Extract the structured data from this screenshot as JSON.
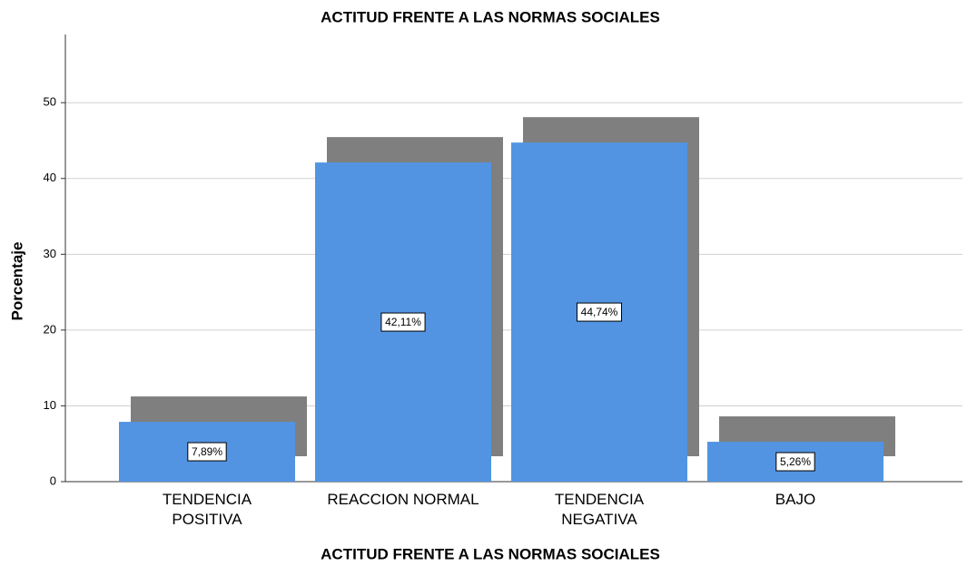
{
  "chart_data": {
    "type": "bar",
    "title": "ACTITUD FRENTE A LAS NORMAS SOCIALES",
    "x_label": "ACTITUD FRENTE A LAS NORMAS SOCIALES",
    "y_label": "Porcentaje",
    "categories": [
      "TENDENCIA\nPOSITIVA",
      "REACCION NORMAL",
      "TENDENCIA\nNEGATIVA",
      "BAJO"
    ],
    "values": [
      7.89,
      42.11,
      44.74,
      5.26
    ],
    "value_labels": [
      "7,89%",
      "42,11%",
      "44,74%",
      "5,26%"
    ],
    "color": "#5294e2",
    "shadow_color": "#7f7f7f",
    "ylim": [
      0,
      59
    ],
    "yticks": [
      0,
      10,
      20,
      30,
      40,
      50
    ],
    "grid": true
  }
}
